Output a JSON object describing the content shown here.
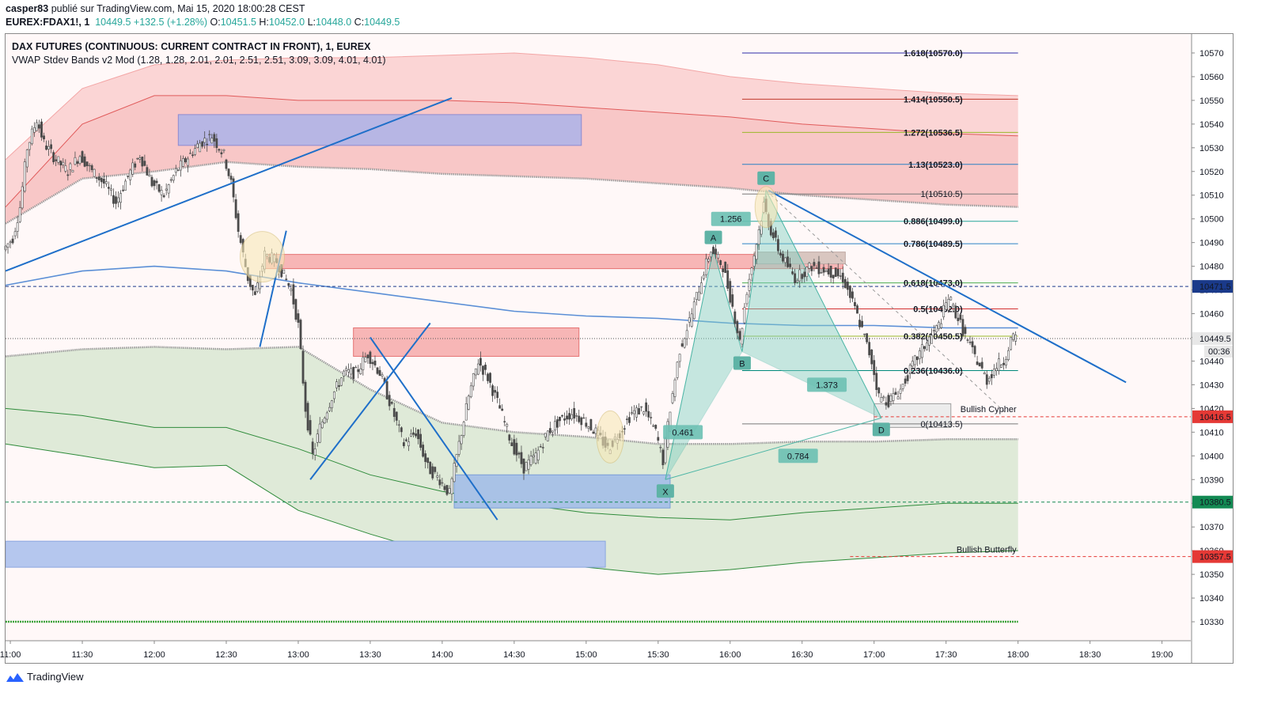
{
  "header": {
    "publisher": "casper83",
    "published_text": "publié sur TradingView.com, Mai 15, 2020 18:00:28 CEST",
    "symbol": "EUREX:FDAX1!, 1",
    "last": "10449.5",
    "change": "+132.5 (+1.28%)",
    "o_label": "O:",
    "o_value": "10451.5",
    "h_label": "H:",
    "h_value": "10452.0",
    "l_label": "L:",
    "l_value": "10448.0",
    "c_label": "C:",
    "c_value": "10449.5"
  },
  "legend": {
    "series_title": "DAX FUTURES (CONTINUOUS: CURRENT CONTRACT IN FRONT), 1, EUREX",
    "indicator": "VWAP Stdev Bands v2 Mod (1.28, 1.28, 2.01, 2.01, 2.51, 2.51, 3.09, 3.09, 4.01, 4.01)"
  },
  "brand": {
    "name": "TradingView"
  },
  "chart_data": {
    "type": "candlestick",
    "x_ticks": [
      "11:00",
      "11:30",
      "12:00",
      "12:30",
      "13:00",
      "13:30",
      "14:00",
      "14:30",
      "15:00",
      "15:30",
      "16:00",
      "16:30",
      "17:00",
      "17:30",
      "18:00",
      "18:30",
      "19:00"
    ],
    "y_ticks": [
      10330,
      10340,
      10350,
      10360,
      10370,
      10380,
      10390,
      10400,
      10410,
      10420,
      10430,
      10440,
      10450,
      10460,
      10470,
      10480,
      10490,
      10500,
      10510,
      10520,
      10530,
      10540,
      10550,
      10560,
      10570
    ],
    "ylim": [
      10322,
      10578
    ],
    "xlim": [
      "10:58",
      "19:12"
    ],
    "price_path": [
      [
        "10:58",
        10487
      ],
      [
        "11:02",
        10492
      ],
      [
        "11:05",
        10505
      ],
      [
        "11:08",
        10530
      ],
      [
        "11:12",
        10542
      ],
      [
        "11:15",
        10532
      ],
      [
        "11:20",
        10525
      ],
      [
        "11:25",
        10520
      ],
      [
        "11:30",
        10527
      ],
      [
        "11:35",
        10520
      ],
      [
        "11:40",
        10515
      ],
      [
        "11:45",
        10507
      ],
      [
        "11:50",
        10518
      ],
      [
        "11:55",
        10527
      ],
      [
        "12:00",
        10515
      ],
      [
        "12:05",
        10510
      ],
      [
        "12:10",
        10520
      ],
      [
        "12:15",
        10526
      ],
      [
        "12:20",
        10532
      ],
      [
        "12:25",
        10535
      ],
      [
        "12:30",
        10527
      ],
      [
        "12:33",
        10515
      ],
      [
        "12:36",
        10495
      ],
      [
        "12:40",
        10475
      ],
      [
        "12:43",
        10467
      ],
      [
        "12:47",
        10485
      ],
      [
        "12:52",
        10482
      ],
      [
        "12:58",
        10470
      ],
      [
        "13:01",
        10455
      ],
      [
        "13:04",
        10420
      ],
      [
        "13:07",
        10400
      ],
      [
        "13:10",
        10412
      ],
      [
        "13:15",
        10425
      ],
      [
        "13:20",
        10435
      ],
      [
        "13:25",
        10435
      ],
      [
        "13:30",
        10443
      ],
      [
        "13:35",
        10435
      ],
      [
        "13:40",
        10420
      ],
      [
        "13:45",
        10405
      ],
      [
        "13:50",
        10410
      ],
      [
        "13:55",
        10395
      ],
      [
        "14:00",
        10390
      ],
      [
        "14:04",
        10384
      ],
      [
        "14:08",
        10405
      ],
      [
        "14:12",
        10425
      ],
      [
        "14:16",
        10440
      ],
      [
        "14:20",
        10433
      ],
      [
        "14:25",
        10420
      ],
      [
        "14:30",
        10405
      ],
      [
        "14:35",
        10395
      ],
      [
        "14:40",
        10400
      ],
      [
        "14:45",
        10410
      ],
      [
        "14:50",
        10415
      ],
      [
        "14:55",
        10418
      ],
      [
        "15:00",
        10415
      ],
      [
        "15:05",
        10410
      ],
      [
        "15:10",
        10403
      ],
      [
        "15:15",
        10410
      ],
      [
        "15:20",
        10418
      ],
      [
        "15:25",
        10420
      ],
      [
        "15:30",
        10410
      ],
      [
        "15:33",
        10398
      ],
      [
        "15:36",
        10420
      ],
      [
        "15:40",
        10445
      ],
      [
        "15:45",
        10460
      ],
      [
        "15:50",
        10478
      ],
      [
        "15:53",
        10487
      ],
      [
        "15:58",
        10480
      ],
      [
        "16:02",
        10463
      ],
      [
        "16:05",
        10448
      ],
      [
        "16:08",
        10470
      ],
      [
        "16:12",
        10490
      ],
      [
        "16:15",
        10506
      ],
      [
        "16:18",
        10495
      ],
      [
        "16:22",
        10485
      ],
      [
        "16:28",
        10475
      ],
      [
        "16:35",
        10480
      ],
      [
        "16:42",
        10478
      ],
      [
        "16:48",
        10475
      ],
      [
        "16:53",
        10462
      ],
      [
        "16:57",
        10450
      ],
      [
        "17:00",
        10440
      ],
      [
        "17:03",
        10425
      ],
      [
        "17:07",
        10423
      ],
      [
        "17:12",
        10428
      ],
      [
        "17:18",
        10440
      ],
      [
        "17:23",
        10448
      ],
      [
        "17:28",
        10455
      ],
      [
        "17:32",
        10467
      ],
      [
        "17:36",
        10458
      ],
      [
        "17:40",
        10448
      ],
      [
        "17:44",
        10440
      ],
      [
        "17:48",
        10432
      ],
      [
        "17:52",
        10438
      ],
      [
        "17:55",
        10440
      ],
      [
        "17:58",
        10449
      ],
      [
        "18:00",
        10449.5
      ]
    ],
    "vwap_bands": {
      "t": [
        "10:58",
        "11:30",
        "12:00",
        "12:30",
        "13:00",
        "13:30",
        "14:00",
        "14:30",
        "15:00",
        "15:30",
        "16:00",
        "16:30",
        "17:00",
        "17:30",
        "18:00"
      ],
      "upper_outer": [
        10525,
        10555,
        10565,
        10567,
        10568,
        10568,
        10569,
        10570,
        10568,
        10565,
        10560,
        10557,
        10555,
        10553,
        10552
      ],
      "upper_mid": [
        10505,
        10540,
        10552,
        10552,
        10550,
        10550,
        10550,
        10549,
        10547,
        10545,
        10543,
        10540,
        10538,
        10536,
        10535
      ],
      "upper_inner": [
        10498,
        10517,
        10520,
        10524,
        10522,
        10521,
        10519,
        10518,
        10517,
        10515,
        10513,
        10510,
        10508,
        10506,
        10505
      ],
      "vwap": [
        10472,
        10478,
        10480,
        10478,
        10473,
        10469,
        10465,
        10461,
        10459,
        10458,
        10456,
        10455,
        10455,
        10454,
        10454
      ],
      "lower_inner": [
        10442,
        10445,
        10446,
        10445,
        10446,
        10428,
        10414,
        10410,
        10408,
        10405,
        10405,
        10406,
        10406,
        10407,
        10407
      ],
      "lower_mid": [
        10420,
        10417,
        10412,
        10412,
        10403,
        10392,
        10385,
        10380,
        10376,
        10374,
        10373,
        10376,
        10378,
        10380,
        10380
      ],
      "lower_outer": [
        10405,
        10400,
        10395,
        10396,
        10377,
        10367,
        10358,
        10356,
        10353,
        10350,
        10352,
        10355,
        10357,
        10359,
        10360
      ]
    },
    "fib_levels": [
      {
        "ratio": "1.618",
        "price": 10570.0,
        "color": "#2c2ca8"
      },
      {
        "ratio": "1.414",
        "price": 10550.5,
        "color": "#c0392b"
      },
      {
        "ratio": "1.272",
        "price": 10536.5,
        "color": "#9ab92a"
      },
      {
        "ratio": "1.13",
        "price": 10523.0,
        "color": "#2a82c4"
      },
      {
        "ratio": "1",
        "price": 10510.5,
        "color": "#787878"
      },
      {
        "ratio": "0.886",
        "price": 10499.0,
        "color": "#26a69a"
      },
      {
        "ratio": "0.786",
        "price": 10489.5,
        "color": "#2a82c4"
      },
      {
        "ratio": "0.618",
        "price": 10473.0,
        "color": "#4caf50"
      },
      {
        "ratio": "0.5",
        "price": 10462.0,
        "color": "#d32f2f"
      },
      {
        "ratio": "0.382",
        "price": 10450.5,
        "color": "#9ab92a"
      },
      {
        "ratio": "0.236",
        "price": 10436.0,
        "color": "#00897b"
      },
      {
        "ratio": "0",
        "price": 10413.5,
        "color": "#787878"
      }
    ],
    "price_labels": [
      {
        "price": 10471.5,
        "text": "10471.5",
        "color": "#1a3a8a"
      },
      {
        "price": 10449.5,
        "text": "10449.5",
        "color": "#e8e8e8",
        "text_color": "#131722"
      },
      {
        "price": 10416.5,
        "text": "10416.5",
        "color": "#e53935"
      },
      {
        "price": 10380.5,
        "text": "10380.5",
        "color": "#138a53"
      },
      {
        "price": 10357.5,
        "text": "10357.5",
        "color": "#e53935"
      }
    ],
    "countdown": "00:36",
    "harmonic_points": [
      {
        "name": "X",
        "time": "15:33",
        "price": 10390
      },
      {
        "name": "A",
        "time": "15:53",
        "price": 10487
      },
      {
        "name": "B",
        "time": "16:05",
        "price": 10444
      },
      {
        "name": "C",
        "time": "16:15",
        "price": 10512
      },
      {
        "name": "D",
        "time": "17:03",
        "price": 10416
      }
    ],
    "harmonic_ratios": [
      "1.256",
      "0.461",
      "1.373",
      "0.784"
    ],
    "pattern_labels": [
      "Bullish Cypher",
      "Bullish Butterfly"
    ]
  }
}
